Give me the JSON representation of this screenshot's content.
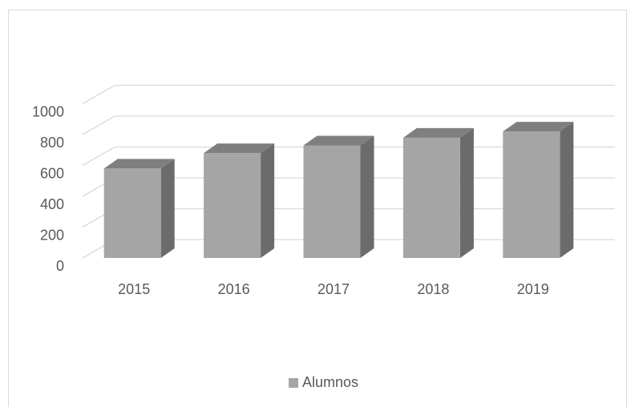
{
  "chart_data": {
    "type": "bar",
    "categories": [
      "2015",
      "2016",
      "2017",
      "2018",
      "2019"
    ],
    "series": [
      {
        "name": "Alumnos",
        "color": "#a5a5a5",
        "values": [
          580,
          680,
          730,
          780,
          820
        ]
      }
    ],
    "ylim": [
      0,
      1000
    ],
    "yticks": [
      0,
      200,
      400,
      600,
      800,
      1000
    ],
    "grid": true,
    "legend": "bottom"
  }
}
